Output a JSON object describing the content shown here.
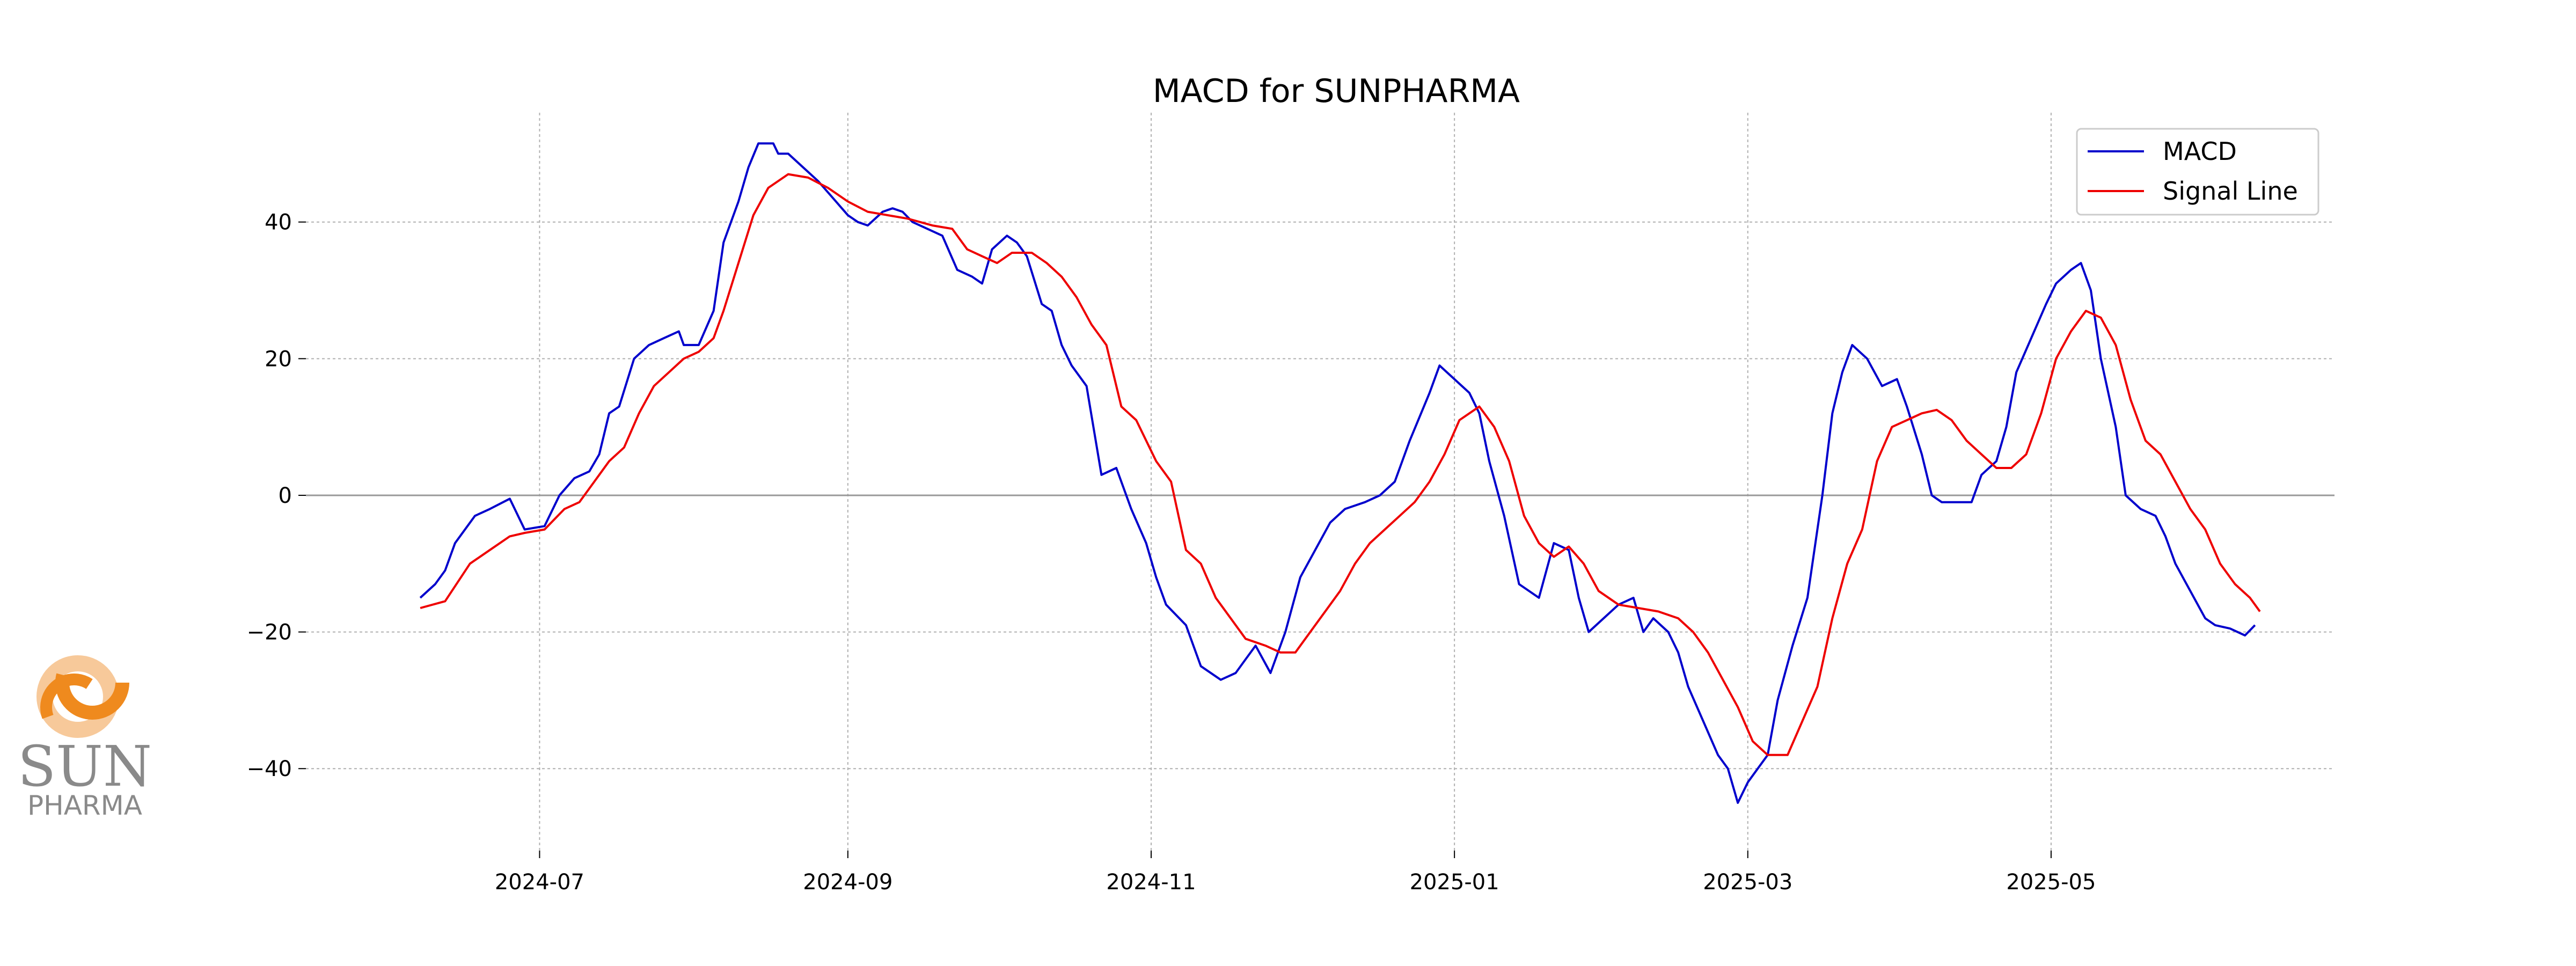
{
  "chart_data": {
    "type": "line",
    "title": "MACD for SUNPHARMA",
    "xlabel": "",
    "ylabel": "",
    "x_ticks": [
      "2024-07",
      "2024-09",
      "2024-11",
      "2025-01",
      "2025-03",
      "2025-05"
    ],
    "x_tick_dates": [
      "2024-07-01",
      "2024-09-01",
      "2024-11-01",
      "2025-01-01",
      "2025-03-01",
      "2025-05-01"
    ],
    "y_ticks": [
      40,
      20,
      0,
      -20,
      -40
    ],
    "y_tick_labels": [
      "40",
      "20",
      "0",
      "−20",
      "−40"
    ],
    "xlim": [
      "2024-05-15",
      "2025-06-27"
    ],
    "ylim": [
      -52,
      56
    ],
    "grid": true,
    "zero_line": true,
    "legend_position": "top-right",
    "series": [
      {
        "name": "MACD",
        "color": "#0000cc",
        "points": [
          [
            "2024-06-07",
            -15
          ],
          [
            "2024-06-10",
            -13
          ],
          [
            "2024-06-12",
            -11
          ],
          [
            "2024-06-14",
            -7
          ],
          [
            "2024-06-18",
            -3
          ],
          [
            "2024-06-21",
            -2
          ],
          [
            "2024-06-25",
            -0.5
          ],
          [
            "2024-06-28",
            -5
          ],
          [
            "2024-07-02",
            -4.5
          ],
          [
            "2024-07-05",
            0
          ],
          [
            "2024-07-08",
            2.5
          ],
          [
            "2024-07-11",
            3.5
          ],
          [
            "2024-07-13",
            6
          ],
          [
            "2024-07-15",
            12
          ],
          [
            "2024-07-17",
            13
          ],
          [
            "2024-07-20",
            20
          ],
          [
            "2024-07-23",
            22
          ],
          [
            "2024-07-26",
            23
          ],
          [
            "2024-07-29",
            24
          ],
          [
            "2024-07-30",
            22
          ],
          [
            "2024-08-02",
            22
          ],
          [
            "2024-08-05",
            27
          ],
          [
            "2024-08-07",
            37
          ],
          [
            "2024-08-10",
            43
          ],
          [
            "2024-08-12",
            48
          ],
          [
            "2024-08-14",
            51.5
          ],
          [
            "2024-08-17",
            51.5
          ],
          [
            "2024-08-18",
            50
          ],
          [
            "2024-08-20",
            50
          ],
          [
            "2024-08-23",
            48
          ],
          [
            "2024-08-26",
            46
          ],
          [
            "2024-08-29",
            43.5
          ],
          [
            "2024-09-01",
            41
          ],
          [
            "2024-09-03",
            40
          ],
          [
            "2024-09-05",
            39.5
          ],
          [
            "2024-09-08",
            41.5
          ],
          [
            "2024-09-10",
            42
          ],
          [
            "2024-09-12",
            41.5
          ],
          [
            "2024-09-14",
            40
          ],
          [
            "2024-09-17",
            39
          ],
          [
            "2024-09-20",
            38
          ],
          [
            "2024-09-23",
            33
          ],
          [
            "2024-09-26",
            32
          ],
          [
            "2024-09-28",
            31
          ],
          [
            "2024-09-30",
            36
          ],
          [
            "2024-10-03",
            38
          ],
          [
            "2024-10-05",
            37
          ],
          [
            "2024-10-07",
            35
          ],
          [
            "2024-10-10",
            28
          ],
          [
            "2024-10-12",
            27
          ],
          [
            "2024-10-14",
            22
          ],
          [
            "2024-10-16",
            19
          ],
          [
            "2024-10-19",
            16
          ],
          [
            "2024-10-22",
            3
          ],
          [
            "2024-10-25",
            4
          ],
          [
            "2024-10-28",
            -2
          ],
          [
            "2024-10-31",
            -7
          ],
          [
            "2024-11-02",
            -12
          ],
          [
            "2024-11-04",
            -16
          ],
          [
            "2024-11-08",
            -19
          ],
          [
            "2024-11-11",
            -25
          ],
          [
            "2024-11-15",
            -27
          ],
          [
            "2024-11-18",
            -26
          ],
          [
            "2024-11-20",
            -24
          ],
          [
            "2024-11-22",
            -22
          ],
          [
            "2024-11-25",
            -26
          ],
          [
            "2024-11-28",
            -20
          ],
          [
            "2024-12-01",
            -12
          ],
          [
            "2024-12-04",
            -8
          ],
          [
            "2024-12-07",
            -4
          ],
          [
            "2024-12-10",
            -2
          ],
          [
            "2024-12-14",
            -1
          ],
          [
            "2024-12-17",
            0
          ],
          [
            "2024-12-20",
            2
          ],
          [
            "2024-12-23",
            8
          ],
          [
            "2024-12-27",
            15
          ],
          [
            "2024-12-29",
            19
          ],
          [
            "2025-01-01",
            17
          ],
          [
            "2025-01-04",
            15
          ],
          [
            "2025-01-06",
            12
          ],
          [
            "2025-01-08",
            5
          ],
          [
            "2025-01-11",
            -3
          ],
          [
            "2025-01-14",
            -13
          ],
          [
            "2025-01-18",
            -15
          ],
          [
            "2025-01-21",
            -7
          ],
          [
            "2025-01-24",
            -8
          ],
          [
            "2025-01-26",
            -15
          ],
          [
            "2025-01-28",
            -20
          ],
          [
            "2025-01-31",
            -18
          ],
          [
            "2025-02-03",
            -16
          ],
          [
            "2025-02-06",
            -15
          ],
          [
            "2025-02-08",
            -20
          ],
          [
            "2025-02-10",
            -18
          ],
          [
            "2025-02-13",
            -20
          ],
          [
            "2025-02-15",
            -23
          ],
          [
            "2025-02-17",
            -28
          ],
          [
            "2025-02-20",
            -33
          ],
          [
            "2025-02-23",
            -38
          ],
          [
            "2025-02-25",
            -40
          ],
          [
            "2025-02-27",
            -45
          ],
          [
            "2025-03-01",
            -42
          ],
          [
            "2025-03-03",
            -40
          ],
          [
            "2025-03-05",
            -38
          ],
          [
            "2025-03-07",
            -30
          ],
          [
            "2025-03-10",
            -22
          ],
          [
            "2025-03-13",
            -15
          ],
          [
            "2025-03-16",
            0
          ],
          [
            "2025-03-18",
            12
          ],
          [
            "2025-03-20",
            18
          ],
          [
            "2025-03-22",
            22
          ],
          [
            "2025-03-25",
            20
          ],
          [
            "2025-03-28",
            16
          ],
          [
            "2025-03-31",
            17
          ],
          [
            "2025-04-02",
            13
          ],
          [
            "2025-04-05",
            6
          ],
          [
            "2025-04-07",
            0
          ],
          [
            "2025-04-09",
            -1
          ],
          [
            "2025-04-12",
            -1
          ],
          [
            "2025-04-15",
            -1
          ],
          [
            "2025-04-17",
            3
          ],
          [
            "2025-04-20",
            5
          ],
          [
            "2025-04-22",
            10
          ],
          [
            "2025-04-24",
            18
          ],
          [
            "2025-04-27",
            23
          ],
          [
            "2025-04-30",
            28
          ],
          [
            "2025-05-02",
            31
          ],
          [
            "2025-05-05",
            33
          ],
          [
            "2025-05-07",
            34
          ],
          [
            "2025-05-09",
            30
          ],
          [
            "2025-05-11",
            20
          ],
          [
            "2025-05-14",
            10
          ],
          [
            "2025-05-16",
            0
          ],
          [
            "2025-05-19",
            -2
          ],
          [
            "2025-05-22",
            -3
          ],
          [
            "2025-05-24",
            -6
          ],
          [
            "2025-05-26",
            -10
          ],
          [
            "2025-05-29",
            -14
          ],
          [
            "2025-06-01",
            -18
          ],
          [
            "2025-06-03",
            -19
          ],
          [
            "2025-06-06",
            -19.5
          ],
          [
            "2025-06-09",
            -20.5
          ],
          [
            "2025-06-11",
            -19
          ]
        ]
      },
      {
        "name": "Signal Line",
        "color": "#ee0000",
        "points": [
          [
            "2024-06-07",
            -16.5
          ],
          [
            "2024-06-12",
            -15.5
          ],
          [
            "2024-06-17",
            -10
          ],
          [
            "2024-06-21",
            -8
          ],
          [
            "2024-06-25",
            -6
          ],
          [
            "2024-06-28",
            -5.5
          ],
          [
            "2024-07-02",
            -5
          ],
          [
            "2024-07-06",
            -2
          ],
          [
            "2024-07-09",
            -1
          ],
          [
            "2024-07-12",
            2
          ],
          [
            "2024-07-15",
            5
          ],
          [
            "2024-07-18",
            7
          ],
          [
            "2024-07-21",
            12
          ],
          [
            "2024-07-24",
            16
          ],
          [
            "2024-07-27",
            18
          ],
          [
            "2024-07-30",
            20
          ],
          [
            "2024-08-02",
            21
          ],
          [
            "2024-08-05",
            23
          ],
          [
            "2024-08-07",
            27
          ],
          [
            "2024-08-10",
            34
          ],
          [
            "2024-08-13",
            41
          ],
          [
            "2024-08-16",
            45
          ],
          [
            "2024-08-20",
            47
          ],
          [
            "2024-08-24",
            46.5
          ],
          [
            "2024-08-28",
            45
          ],
          [
            "2024-09-01",
            43
          ],
          [
            "2024-09-05",
            41.5
          ],
          [
            "2024-09-09",
            41
          ],
          [
            "2024-09-13",
            40.5
          ],
          [
            "2024-09-18",
            39.5
          ],
          [
            "2024-09-22",
            39
          ],
          [
            "2024-09-25",
            36
          ],
          [
            "2024-09-28",
            35
          ],
          [
            "2024-10-01",
            34
          ],
          [
            "2024-10-04",
            35.5
          ],
          [
            "2024-10-08",
            35.5
          ],
          [
            "2024-10-11",
            34
          ],
          [
            "2024-10-14",
            32
          ],
          [
            "2024-10-17",
            29
          ],
          [
            "2024-10-20",
            25
          ],
          [
            "2024-10-23",
            22
          ],
          [
            "2024-10-26",
            13
          ],
          [
            "2024-10-29",
            11
          ],
          [
            "2024-11-02",
            5
          ],
          [
            "2024-11-05",
            2
          ],
          [
            "2024-11-08",
            -8
          ],
          [
            "2024-11-11",
            -10
          ],
          [
            "2024-11-14",
            -15
          ],
          [
            "2024-11-17",
            -18
          ],
          [
            "2024-11-20",
            -21
          ],
          [
            "2024-11-24",
            -22
          ],
          [
            "2024-11-27",
            -23
          ],
          [
            "2024-11-30",
            -23
          ],
          [
            "2024-12-03",
            -20
          ],
          [
            "2024-12-06",
            -17
          ],
          [
            "2024-12-09",
            -14
          ],
          [
            "2024-12-12",
            -10
          ],
          [
            "2024-12-15",
            -7
          ],
          [
            "2024-12-18",
            -5
          ],
          [
            "2024-12-21",
            -3
          ],
          [
            "2024-12-24",
            -1
          ],
          [
            "2024-12-27",
            2
          ],
          [
            "2024-12-30",
            6
          ],
          [
            "2025-01-02",
            11
          ],
          [
            "2025-01-06",
            13
          ],
          [
            "2025-01-09",
            10
          ],
          [
            "2025-01-12",
            5
          ],
          [
            "2025-01-15",
            -3
          ],
          [
            "2025-01-18",
            -7
          ],
          [
            "2025-01-21",
            -9
          ],
          [
            "2025-01-24",
            -7.5
          ],
          [
            "2025-01-27",
            -10
          ],
          [
            "2025-01-30",
            -14
          ],
          [
            "2025-02-03",
            -16
          ],
          [
            "2025-02-07",
            -16.5
          ],
          [
            "2025-02-11",
            -17
          ],
          [
            "2025-02-15",
            -18
          ],
          [
            "2025-02-18",
            -20
          ],
          [
            "2025-02-21",
            -23
          ],
          [
            "2025-02-24",
            -27
          ],
          [
            "2025-02-27",
            -31
          ],
          [
            "2025-03-02",
            -36
          ],
          [
            "2025-03-05",
            -38
          ],
          [
            "2025-03-09",
            -38
          ],
          [
            "2025-03-12",
            -33
          ],
          [
            "2025-03-15",
            -28
          ],
          [
            "2025-03-18",
            -18
          ],
          [
            "2025-03-21",
            -10
          ],
          [
            "2025-03-24",
            -5
          ],
          [
            "2025-03-27",
            5
          ],
          [
            "2025-03-30",
            10
          ],
          [
            "2025-04-02",
            11
          ],
          [
            "2025-04-05",
            12
          ],
          [
            "2025-04-08",
            12.5
          ],
          [
            "2025-04-11",
            11
          ],
          [
            "2025-04-14",
            8
          ],
          [
            "2025-04-17",
            6
          ],
          [
            "2025-04-20",
            4
          ],
          [
            "2025-04-23",
            4
          ],
          [
            "2025-04-26",
            6
          ],
          [
            "2025-04-29",
            12
          ],
          [
            "2025-05-02",
            20
          ],
          [
            "2025-05-05",
            24
          ],
          [
            "2025-05-08",
            27
          ],
          [
            "2025-05-11",
            26
          ],
          [
            "2025-05-14",
            22
          ],
          [
            "2025-05-17",
            14
          ],
          [
            "2025-05-20",
            8
          ],
          [
            "2025-05-23",
            6
          ],
          [
            "2025-05-26",
            2
          ],
          [
            "2025-05-29",
            -2
          ],
          [
            "2025-06-01",
            -5
          ],
          [
            "2025-06-04",
            -10
          ],
          [
            "2025-06-07",
            -13
          ],
          [
            "2025-06-10",
            -15
          ],
          [
            "2025-06-12",
            -17
          ]
        ]
      }
    ]
  },
  "logo": {
    "name": "SUN",
    "sub": "PHARMA",
    "colors": {
      "ring_light": "#f7c99a",
      "ring_dark": "#ef8a1e",
      "text": "#8a8a8a"
    }
  }
}
